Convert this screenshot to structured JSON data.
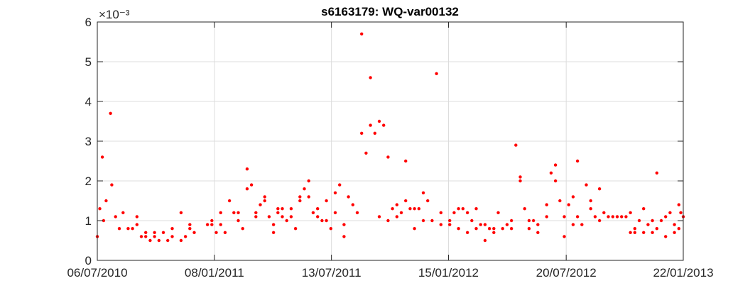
{
  "chart_data": {
    "type": "scatter",
    "title": "s6163179: WQ-var00132",
    "xlabel": "",
    "ylabel": "",
    "y_exponent_label": "×10⁻³",
    "xlim": [
      "2010-07-06",
      "2013-01-22"
    ],
    "ylim": [
      0,
      6
    ],
    "x_ticks": [
      "06/07/2010",
      "08/01/2011",
      "13/07/2011",
      "15/01/2012",
      "20/07/2012",
      "22/01/2013"
    ],
    "y_ticks": [
      "0",
      "1",
      "2",
      "3",
      "4",
      "5",
      "6"
    ],
    "grid": true,
    "marker_color": "#ff0000",
    "series": [
      {
        "color": "#ff0000",
        "points": [
          [
            "2010-07-06",
            0.6
          ],
          [
            "2010-07-10",
            1.3
          ],
          [
            "2010-07-14",
            2.6
          ],
          [
            "2010-07-16",
            1.0
          ],
          [
            "2010-07-20",
            1.5
          ],
          [
            "2010-07-27",
            3.7
          ],
          [
            "2010-07-29",
            1.9
          ],
          [
            "2010-08-04",
            1.1
          ],
          [
            "2010-08-10",
            0.8
          ],
          [
            "2010-08-16",
            1.2
          ],
          [
            "2010-08-24",
            0.8
          ],
          [
            "2010-08-31",
            0.8
          ],
          [
            "2010-09-07",
            1.1
          ],
          [
            "2010-09-07",
            0.9
          ],
          [
            "2010-09-14",
            0.6
          ],
          [
            "2010-09-21",
            0.7
          ],
          [
            "2010-09-21",
            0.6
          ],
          [
            "2010-09-28",
            0.5
          ],
          [
            "2010-10-05",
            0.7
          ],
          [
            "2010-10-05",
            0.6
          ],
          [
            "2010-10-12",
            0.5
          ],
          [
            "2010-10-19",
            0.7
          ],
          [
            "2010-10-26",
            0.5
          ],
          [
            "2010-11-02",
            0.6
          ],
          [
            "2010-11-02",
            0.8
          ],
          [
            "2010-11-16",
            1.2
          ],
          [
            "2010-11-16",
            0.5
          ],
          [
            "2010-11-23",
            0.6
          ],
          [
            "2010-11-30",
            0.9
          ],
          [
            "2010-11-30",
            0.8
          ],
          [
            "2010-12-07",
            0.7
          ],
          [
            "2010-12-28",
            0.9
          ],
          [
            "2011-01-04",
            1.0
          ],
          [
            "2011-01-04",
            0.9
          ],
          [
            "2011-01-11",
            0.7
          ],
          [
            "2011-01-18",
            1.2
          ],
          [
            "2011-01-18",
            0.9
          ],
          [
            "2011-01-25",
            0.7
          ],
          [
            "2011-02-01",
            1.5
          ],
          [
            "2011-02-08",
            1.2
          ],
          [
            "2011-02-15",
            1.2
          ],
          [
            "2011-02-15",
            1.0
          ],
          [
            "2011-02-22",
            0.8
          ],
          [
            "2011-03-01",
            2.3
          ],
          [
            "2011-03-01",
            1.8
          ],
          [
            "2011-03-08",
            1.9
          ],
          [
            "2011-03-15",
            1.2
          ],
          [
            "2011-03-15",
            1.1
          ],
          [
            "2011-03-22",
            1.4
          ],
          [
            "2011-03-29",
            1.5
          ],
          [
            "2011-03-29",
            1.6
          ],
          [
            "2011-04-05",
            1.1
          ],
          [
            "2011-04-12",
            0.9
          ],
          [
            "2011-04-12",
            0.7
          ],
          [
            "2011-04-19",
            1.3
          ],
          [
            "2011-04-19",
            1.2
          ],
          [
            "2011-04-26",
            1.1
          ],
          [
            "2011-04-26",
            1.3
          ],
          [
            "2011-05-03",
            1.0
          ],
          [
            "2011-05-10",
            1.3
          ],
          [
            "2011-05-10",
            1.1
          ],
          [
            "2011-05-17",
            0.8
          ],
          [
            "2011-05-24",
            1.6
          ],
          [
            "2011-05-24",
            1.5
          ],
          [
            "2011-05-31",
            1.8
          ],
          [
            "2011-06-07",
            2.0
          ],
          [
            "2011-06-07",
            1.6
          ],
          [
            "2011-06-14",
            1.2
          ],
          [
            "2011-06-21",
            1.3
          ],
          [
            "2011-06-21",
            1.1
          ],
          [
            "2011-06-28",
            1.0
          ],
          [
            "2011-07-05",
            1.5
          ],
          [
            "2011-07-05",
            1.0
          ],
          [
            "2011-07-12",
            0.8
          ],
          [
            "2011-07-19",
            1.7
          ],
          [
            "2011-07-19",
            1.2
          ],
          [
            "2011-07-26",
            1.9
          ],
          [
            "2011-08-02",
            0.9
          ],
          [
            "2011-08-02",
            0.6
          ],
          [
            "2011-08-09",
            1.6
          ],
          [
            "2011-08-16",
            1.4
          ],
          [
            "2011-08-23",
            1.2
          ],
          [
            "2011-08-30",
            5.7
          ],
          [
            "2011-08-30",
            3.2
          ],
          [
            "2011-09-06",
            2.7
          ],
          [
            "2011-09-13",
            4.6
          ],
          [
            "2011-09-13",
            3.4
          ],
          [
            "2011-09-20",
            3.2
          ],
          [
            "2011-09-27",
            3.5
          ],
          [
            "2011-09-27",
            1.1
          ],
          [
            "2011-10-04",
            3.4
          ],
          [
            "2011-10-11",
            2.6
          ],
          [
            "2011-10-11",
            1.0
          ],
          [
            "2011-10-18",
            1.3
          ],
          [
            "2011-10-25",
            1.4
          ],
          [
            "2011-10-25",
            1.1
          ],
          [
            "2011-11-01",
            1.2
          ],
          [
            "2011-11-08",
            2.5
          ],
          [
            "2011-11-08",
            1.5
          ],
          [
            "2011-11-15",
            1.3
          ],
          [
            "2011-11-22",
            1.3
          ],
          [
            "2011-11-22",
            0.8
          ],
          [
            "2011-11-29",
            1.3
          ],
          [
            "2011-12-06",
            1.0
          ],
          [
            "2011-12-06",
            1.7
          ],
          [
            "2011-12-13",
            1.5
          ],
          [
            "2011-12-20",
            1.0
          ],
          [
            "2011-12-27",
            4.7
          ],
          [
            "2012-01-03",
            1.2
          ],
          [
            "2012-01-03",
            0.9
          ],
          [
            "2012-01-17",
            1.0
          ],
          [
            "2012-01-17",
            0.9
          ],
          [
            "2012-01-24",
            1.2
          ],
          [
            "2012-01-31",
            1.3
          ],
          [
            "2012-01-31",
            0.8
          ],
          [
            "2012-02-07",
            1.3
          ],
          [
            "2012-02-14",
            1.2
          ],
          [
            "2012-02-14",
            0.7
          ],
          [
            "2012-02-21",
            1.0
          ],
          [
            "2012-02-28",
            1.3
          ],
          [
            "2012-02-28",
            0.8
          ],
          [
            "2012-03-06",
            0.9
          ],
          [
            "2012-03-13",
            0.9
          ],
          [
            "2012-03-13",
            0.5
          ],
          [
            "2012-03-20",
            0.8
          ],
          [
            "2012-03-27",
            0.8
          ],
          [
            "2012-03-27",
            0.7
          ],
          [
            "2012-04-03",
            1.2
          ],
          [
            "2012-04-10",
            0.8
          ],
          [
            "2012-04-17",
            0.9
          ],
          [
            "2012-04-24",
            1.0
          ],
          [
            "2012-04-24",
            0.8
          ],
          [
            "2012-05-01",
            2.9
          ],
          [
            "2012-05-08",
            2.1
          ],
          [
            "2012-05-08",
            2.0
          ],
          [
            "2012-05-15",
            1.3
          ],
          [
            "2012-05-22",
            1.0
          ],
          [
            "2012-05-22",
            0.8
          ],
          [
            "2012-05-29",
            1.0
          ],
          [
            "2012-06-05",
            0.9
          ],
          [
            "2012-06-05",
            0.7
          ],
          [
            "2012-06-19",
            1.4
          ],
          [
            "2012-06-19",
            1.1
          ],
          [
            "2012-06-26",
            2.2
          ],
          [
            "2012-07-03",
            2.4
          ],
          [
            "2012-07-03",
            2.0
          ],
          [
            "2012-07-10",
            1.5
          ],
          [
            "2012-07-17",
            1.1
          ],
          [
            "2012-07-17",
            0.6
          ],
          [
            "2012-07-24",
            1.4
          ],
          [
            "2012-07-31",
            1.6
          ],
          [
            "2012-07-31",
            0.9
          ],
          [
            "2012-08-07",
            2.5
          ],
          [
            "2012-08-07",
            1.1
          ],
          [
            "2012-08-14",
            0.9
          ],
          [
            "2012-08-21",
            1.9
          ],
          [
            "2012-08-28",
            1.5
          ],
          [
            "2012-08-28",
            1.3
          ],
          [
            "2012-09-04",
            1.1
          ],
          [
            "2012-09-11",
            1.8
          ],
          [
            "2012-09-11",
            1.0
          ],
          [
            "2012-09-18",
            1.2
          ],
          [
            "2012-09-25",
            1.1
          ],
          [
            "2012-10-02",
            1.1
          ],
          [
            "2012-10-09",
            1.1
          ],
          [
            "2012-10-16",
            1.1
          ],
          [
            "2012-10-23",
            1.1
          ],
          [
            "2012-10-30",
            1.2
          ],
          [
            "2012-10-30",
            0.7
          ],
          [
            "2012-11-06",
            0.8
          ],
          [
            "2012-11-06",
            0.7
          ],
          [
            "2012-11-13",
            1.0
          ],
          [
            "2012-11-20",
            0.7
          ],
          [
            "2012-11-20",
            1.3
          ],
          [
            "2012-11-27",
            0.9
          ],
          [
            "2012-12-04",
            1.0
          ],
          [
            "2012-12-04",
            0.7
          ],
          [
            "2012-12-11",
            0.8
          ],
          [
            "2012-12-11",
            2.2
          ],
          [
            "2012-12-18",
            1.0
          ],
          [
            "2012-12-25",
            0.6
          ],
          [
            "2012-12-25",
            1.1
          ],
          [
            "2013-01-01",
            1.2
          ],
          [
            "2013-01-08",
            0.9
          ],
          [
            "2013-01-08",
            0.7
          ],
          [
            "2013-01-15",
            1.4
          ],
          [
            "2013-01-15",
            0.8
          ],
          [
            "2013-01-18",
            1.2
          ],
          [
            "2013-01-22",
            1.1
          ]
        ]
      }
    ]
  }
}
